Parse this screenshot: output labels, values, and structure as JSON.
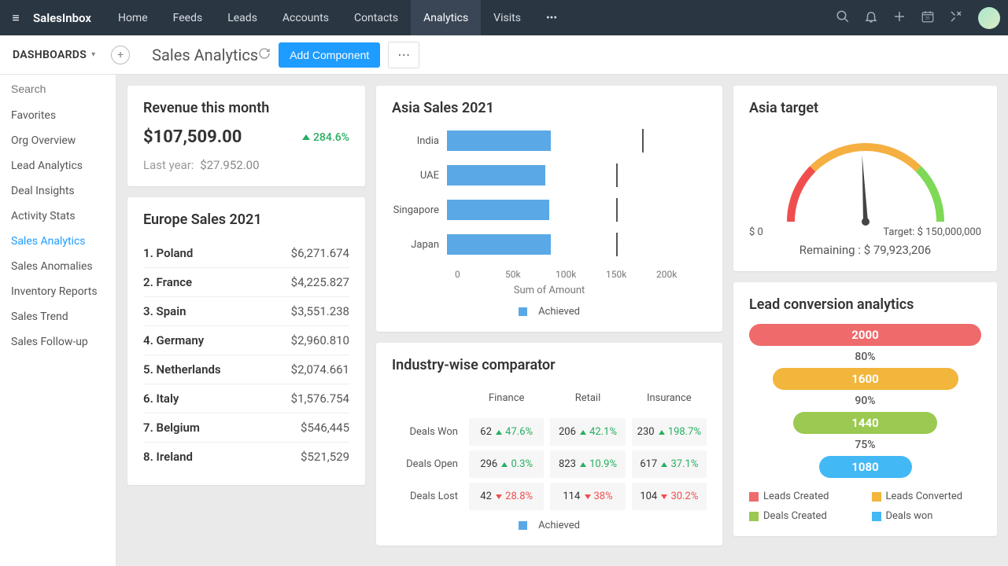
{
  "nav": {
    "brand": "SalesInbox",
    "items": [
      "Home",
      "Feeds",
      "Leads",
      "Accounts",
      "Contacts",
      "Analytics",
      "Visits"
    ],
    "active_index": 5,
    "more": "•••"
  },
  "subbar": {
    "dashboards_label": "DASHBOARDS",
    "title": "Sales Analytics",
    "add_button": "Add Component"
  },
  "sidebar": {
    "search_placeholder": "Search",
    "items": [
      "Favorites",
      "Org Overview",
      "Lead Analytics",
      "Deal Insights",
      "Activity Stats",
      "Sales Analytics",
      "Sales Anomalies",
      "Inventory Reports",
      "Sales Trend",
      "Sales Follow-up"
    ],
    "active_index": 5
  },
  "revenue": {
    "title": "Revenue this month",
    "amount": "$107,509.00",
    "change": "284.6%",
    "last_label": "Last year:",
    "last_value": "$27.952.00"
  },
  "europe": {
    "title": "Europe Sales 2021",
    "rows": [
      {
        "rank": "1.",
        "name": "Poland",
        "amount": "$6,271.674"
      },
      {
        "rank": "2.",
        "name": "France",
        "amount": "$4,225.827"
      },
      {
        "rank": "3.",
        "name": "Spain",
        "amount": "$3,551.238"
      },
      {
        "rank": "4.",
        "name": "Germany",
        "amount": "$2,960.810"
      },
      {
        "rank": "5.",
        "name": "Netherlands",
        "amount": "$2,074.661"
      },
      {
        "rank": "6.",
        "name": "Italy",
        "amount": "$1,576.754"
      },
      {
        "rank": "7.",
        "name": "Belgium",
        "amount": "$546,445"
      },
      {
        "rank": "8.",
        "name": "Ireland",
        "amount": "$521,529"
      }
    ]
  },
  "asia_chart": {
    "title": "Asia Sales 2021",
    "type": "bar",
    "categories": [
      "India",
      "UAE",
      "Singapore",
      "Japan"
    ],
    "values": [
      80000,
      76000,
      79000,
      80000
    ],
    "targets": [
      150000,
      130000,
      130000,
      130000
    ],
    "xlim": [
      0,
      200000
    ],
    "xticks": [
      "0",
      "50k",
      "100k",
      "150k",
      "200k"
    ],
    "xlabel": "Sum of Amount",
    "bar_color": "#5aa9e6",
    "target_color": "#555555",
    "legend": "Achieved"
  },
  "comparator": {
    "title": "Industry-wise comparator",
    "columns": [
      "Finance",
      "Retail",
      "Insurance"
    ],
    "rows": [
      "Deals Won",
      "Deals Open",
      "Deals Lost"
    ],
    "cells": [
      [
        {
          "val": "62",
          "dir": "up",
          "pct": "47.6%"
        },
        {
          "val": "206",
          "dir": "up",
          "pct": "42.1%"
        },
        {
          "val": "230",
          "dir": "up",
          "pct": "198.7%"
        }
      ],
      [
        {
          "val": "296",
          "dir": "up",
          "pct": "0.3%"
        },
        {
          "val": "823",
          "dir": "up",
          "pct": "10.9%"
        },
        {
          "val": "617",
          "dir": "up",
          "pct": "37.1%"
        }
      ],
      [
        {
          "val": "42",
          "dir": "down",
          "pct": "28.8%"
        },
        {
          "val": "114",
          "dir": "down",
          "pct": "38%"
        },
        {
          "val": "104",
          "dir": "down",
          "pct": "30.2%"
        }
      ]
    ],
    "legend": "Achieved",
    "legend_color": "#5aa9e6"
  },
  "target": {
    "title": "Asia target",
    "min_label": "$ 0",
    "max_label": "Target: $ 150,000,000",
    "remaining_label": "Remaining :",
    "remaining_value": "$ 79,923,206",
    "gauge": {
      "colors": [
        "#f04e4e",
        "#f5b041",
        "#f5b041",
        "#7ed957"
      ],
      "needle_angle": -3
    }
  },
  "funnel": {
    "title": "Lead conversion analytics",
    "steps": [
      {
        "label": "2000",
        "width": 100,
        "color": "#ef6a6a",
        "pct": "80%"
      },
      {
        "label": "1600",
        "width": 80,
        "color": "#f2b63c",
        "pct": "90%"
      },
      {
        "label": "1440",
        "width": 62,
        "color": "#9bc951",
        "pct": "75%"
      },
      {
        "label": "1080",
        "width": 40,
        "color": "#42b8f4"
      }
    ],
    "legend": [
      {
        "label": "Leads Created",
        "color": "#ef6a6a"
      },
      {
        "label": "Leads Converted",
        "color": "#f2b63c"
      },
      {
        "label": "Deals Created",
        "color": "#9bc951"
      },
      {
        "label": "Deals won",
        "color": "#42b8f4"
      }
    ]
  }
}
